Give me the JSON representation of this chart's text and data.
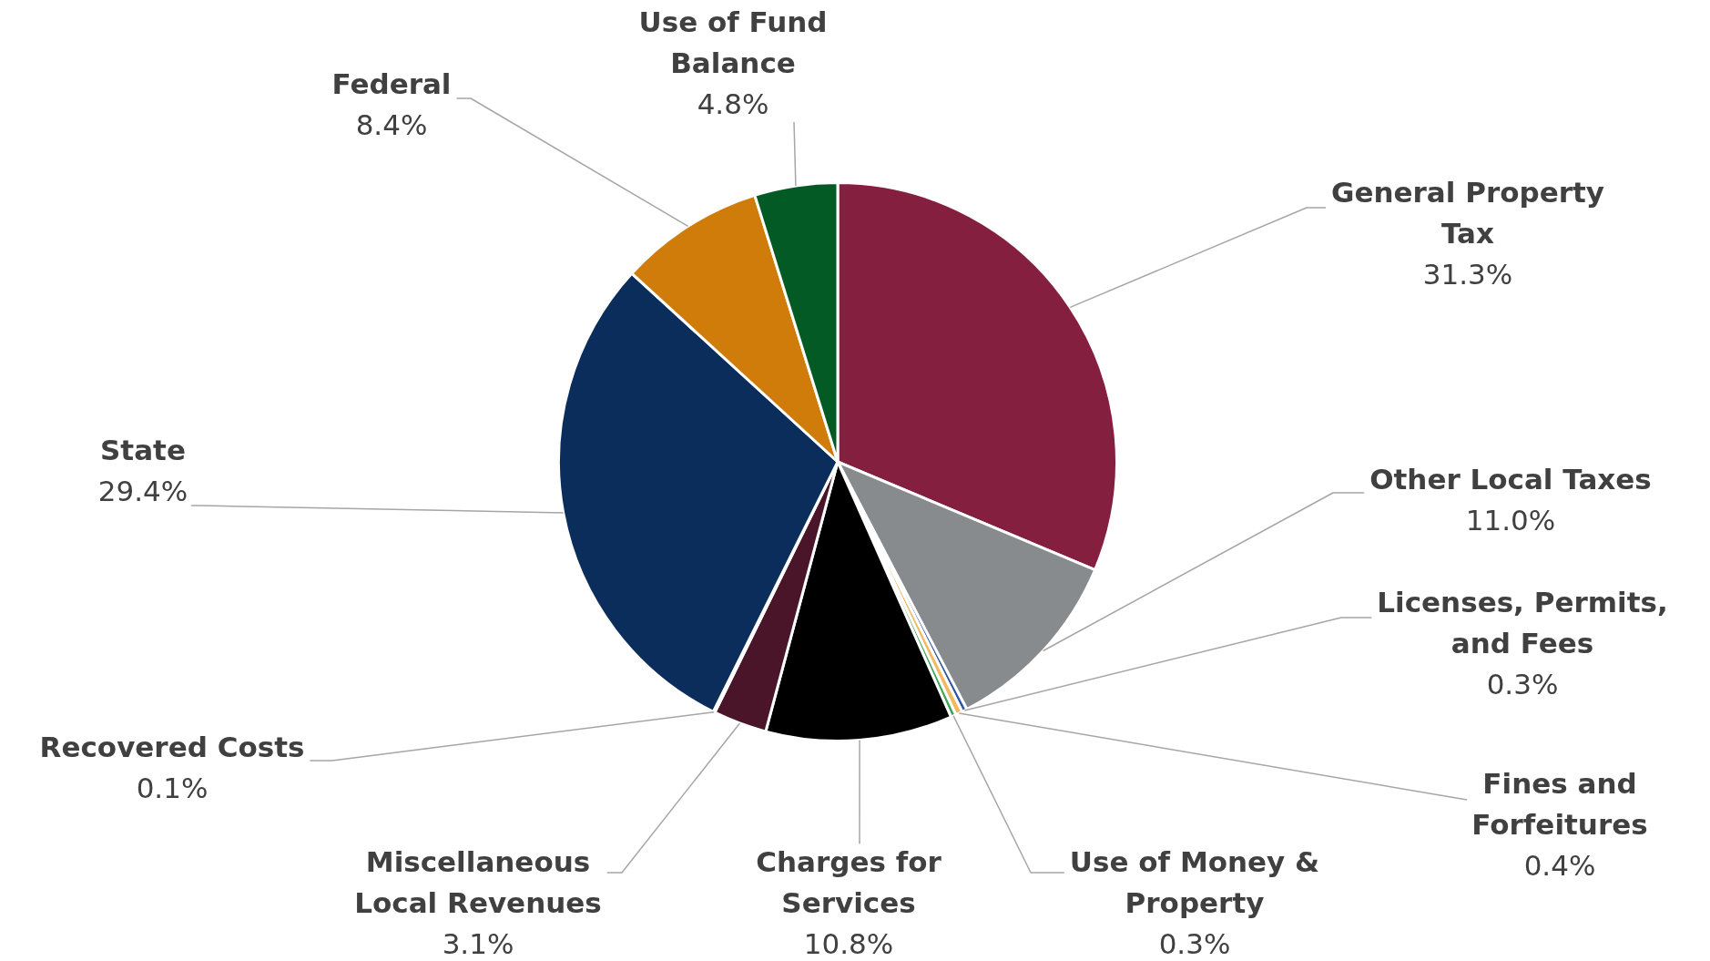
{
  "chart_data": {
    "type": "pie",
    "categories": [
      "General Property Tax",
      "Other Local Taxes",
      "Licenses, Permits, and Fees",
      "Fines and Forfeitures",
      "Use of Money & Property",
      "Charges for Services",
      "Miscellaneous Local Revenues",
      "Recovered Costs",
      "State",
      "Federal",
      "Use of Fund Balance"
    ],
    "values": [
      31.3,
      11.0,
      0.3,
      0.4,
      0.3,
      10.8,
      3.1,
      0.1,
      29.4,
      8.4,
      4.8
    ],
    "value_labels": [
      "31.3%",
      "11.0%",
      "0.3%",
      "0.4%",
      "0.3%",
      "10.8%",
      "3.1%",
      "0.1%",
      "29.4%",
      "8.4%",
      "4.8%"
    ],
    "colors": [
      "#841f3f",
      "#888b8d",
      "#2f55a4",
      "#f4b860",
      "#3aa655",
      "#000000",
      "#4a1528",
      "#8a6d3b",
      "#0a2d5c",
      "#cf7c0a",
      "#045a25"
    ],
    "legend": false
  }
}
